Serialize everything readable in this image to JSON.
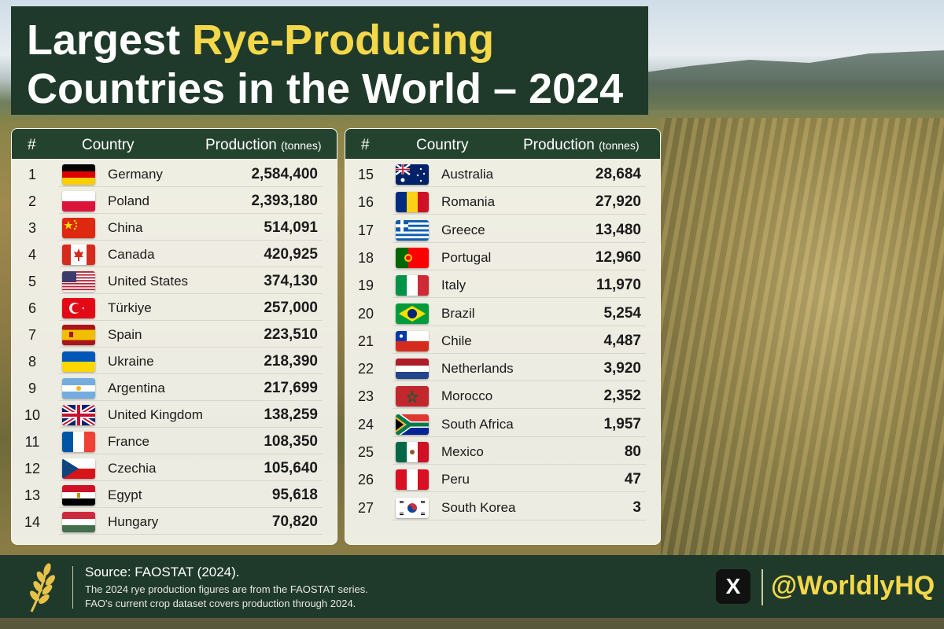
{
  "title": {
    "line1_prefix": "Largest ",
    "line1_accent": "Rye-Producing",
    "line2": "Countries in the World – 2024"
  },
  "colors": {
    "header_bg": "#1f3a2b",
    "accent": "#f4d84a"
  },
  "table_headers": {
    "rank": "#",
    "country": "Country",
    "production": "Production",
    "unit": "(tonnes)"
  },
  "left_rows": [
    {
      "rank": "1",
      "country": "Germany",
      "production": "2,584,400",
      "flag": "germany-flag"
    },
    {
      "rank": "2",
      "country": "Poland",
      "production": "2,393,180",
      "flag": "poland-flag"
    },
    {
      "rank": "3",
      "country": "China",
      "production": "514,091",
      "flag": "china-flag"
    },
    {
      "rank": "4",
      "country": "Canada",
      "production": "420,925",
      "flag": "canada-flag"
    },
    {
      "rank": "5",
      "country": "United States",
      "production": "374,130",
      "flag": "united-states-flag"
    },
    {
      "rank": "6",
      "country": "Türkiye",
      "production": "257,000",
      "flag": "turkiye-flag"
    },
    {
      "rank": "7",
      "country": "Spain",
      "production": "223,510",
      "flag": "spain-flag"
    },
    {
      "rank": "8",
      "country": "Ukraine",
      "production": "218,390",
      "flag": "ukraine-flag"
    },
    {
      "rank": "9",
      "country": "Argentina",
      "production": "217,699",
      "flag": "argentina-flag"
    },
    {
      "rank": "10",
      "country": "United Kingdom",
      "production": "138,259",
      "flag": "united-kingdom-flag"
    },
    {
      "rank": "11",
      "country": "France",
      "production": "108,350",
      "flag": "france-flag"
    },
    {
      "rank": "12",
      "country": "Czechia",
      "production": "105,640",
      "flag": "czechia-flag"
    },
    {
      "rank": "13",
      "country": "Egypt",
      "production": "95,618",
      "flag": "egypt-flag"
    },
    {
      "rank": "14",
      "country": "Hungary",
      "production": "70,820",
      "flag": "hungary-flag"
    }
  ],
  "right_rows": [
    {
      "rank": "15",
      "country": "Australia",
      "production": "28,684",
      "flag": "australia-flag"
    },
    {
      "rank": "16",
      "country": "Romania",
      "production": "27,920",
      "flag": "romania-flag"
    },
    {
      "rank": "17",
      "country": "Greece",
      "production": "13,480",
      "flag": "greece-flag"
    },
    {
      "rank": "18",
      "country": "Portugal",
      "production": "12,960",
      "flag": "portugal-flag"
    },
    {
      "rank": "19",
      "country": "Italy",
      "production": "11,970",
      "flag": "italy-flag"
    },
    {
      "rank": "20",
      "country": "Brazil",
      "production": "5,254",
      "flag": "brazil-flag"
    },
    {
      "rank": "21",
      "country": "Chile",
      "production": "4,487",
      "flag": "chile-flag"
    },
    {
      "rank": "22",
      "country": "Netherlands",
      "production": "3,920",
      "flag": "netherlands-flag"
    },
    {
      "rank": "23",
      "country": "Morocco",
      "production": "2,352",
      "flag": "morocco-flag"
    },
    {
      "rank": "24",
      "country": "South Africa",
      "production": "1,957",
      "flag": "south-africa-flag"
    },
    {
      "rank": "25",
      "country": "Mexico",
      "production": "80",
      "flag": "mexico-flag"
    },
    {
      "rank": "26",
      "country": "Peru",
      "production": "47",
      "flag": "peru-flag"
    },
    {
      "rank": "27",
      "country": "South Korea",
      "production": "3",
      "flag": "south-korea-flag"
    }
  ],
  "footer": {
    "source_title": "Source: FAOSTAT (2024).",
    "line1": "The 2024 rye production figures are from the FAOSTAT series.",
    "line2": "FAO's current crop dataset covers production through 2024.",
    "x_logo": "X",
    "handle": "@WorldlyHQ",
    "wheat_icon": "wheat-icon"
  }
}
